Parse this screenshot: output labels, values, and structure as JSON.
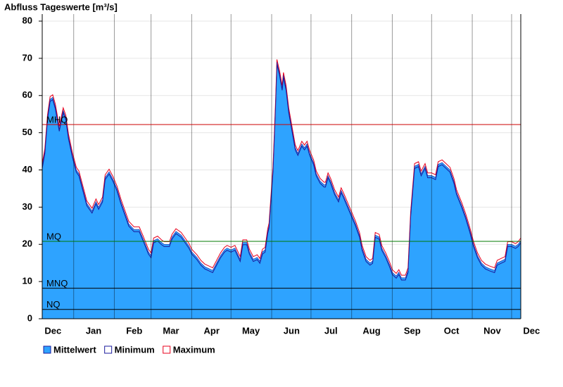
{
  "chart_data": {
    "type": "area",
    "title": "Abfluss Tageswerte [m³/s]",
    "xlim": [
      0,
      365
    ],
    "xticks": [
      {
        "value": -7,
        "label": "Dec"
      },
      {
        "value": 24,
        "label": "Jan"
      },
      {
        "value": 55,
        "label": "Feb"
      },
      {
        "value": 83,
        "label": "Mar"
      },
      {
        "value": 114,
        "label": "Apr"
      },
      {
        "value": 144,
        "label": "May"
      },
      {
        "value": 175,
        "label": "Jun"
      },
      {
        "value": 205,
        "label": "Jul"
      },
      {
        "value": 236,
        "label": "Aug"
      },
      {
        "value": 267,
        "label": "Sep"
      },
      {
        "value": 297,
        "label": "Oct"
      },
      {
        "value": 328,
        "label": "Nov"
      },
      {
        "value": 358,
        "label": "Dec"
      }
    ],
    "ylim": [
      0,
      80
    ],
    "yticks": [
      0,
      10,
      20,
      30,
      40,
      50,
      60,
      70,
      80
    ],
    "grid": true,
    "x": [
      0,
      2,
      4,
      6,
      8,
      10,
      12,
      13,
      16,
      18,
      20,
      23,
      26,
      28,
      31,
      34,
      38,
      41,
      43,
      46,
      48,
      51,
      54,
      57,
      60,
      63,
      66,
      70,
      74,
      77,
      81,
      83,
      85,
      88,
      91,
      93,
      97,
      99,
      102,
      106,
      109,
      112,
      114,
      118,
      121,
      124,
      127,
      130,
      133,
      136,
      139,
      141,
      144,
      147,
      149,
      151,
      153,
      156,
      158,
      161,
      164,
      166,
      168,
      170,
      172,
      173,
      176,
      178,
      179,
      181,
      183,
      184,
      186,
      188,
      191,
      193,
      195,
      198,
      200,
      202,
      204,
      207,
      209,
      212,
      215,
      216,
      218,
      220,
      223,
      226,
      228,
      230,
      233,
      236,
      239,
      242,
      244,
      247,
      250,
      252,
      254,
      257,
      259,
      262,
      265,
      267,
      270,
      272,
      274,
      277,
      279,
      281,
      284,
      287,
      289,
      292,
      294,
      297,
      300,
      302,
      305,
      308,
      311,
      314,
      316,
      320,
      323,
      326,
      329,
      332,
      335,
      338,
      341,
      345,
      347,
      350,
      353,
      355,
      358,
      361,
      363,
      365
    ],
    "series": [
      {
        "name": "Mittelwert",
        "style": "area",
        "color": "#2ea3ff",
        "values": [
          41,
          45,
          54,
          59,
          59.5,
          57,
          53,
          51,
          56,
          54,
          49,
          44,
          40,
          39,
          35,
          31,
          29,
          31.5,
          30,
          32,
          38,
          39.5,
          37.5,
          35,
          31.5,
          28.5,
          25.5,
          24,
          24,
          21.5,
          18,
          17,
          21,
          21.5,
          20.5,
          20,
          20,
          22,
          23.5,
          22.5,
          21,
          19.5,
          18,
          16.5,
          15,
          14,
          13.5,
          13,
          15,
          17,
          18.5,
          19,
          18.5,
          19,
          17.5,
          16,
          20.5,
          20.5,
          18,
          16,
          16.5,
          15.5,
          18,
          18.5,
          23.5,
          25,
          40,
          58,
          69,
          66,
          62,
          65.5,
          62,
          56,
          50,
          46,
          44.5,
          47,
          46,
          47,
          44.5,
          42,
          39,
          37,
          36,
          36,
          38.5,
          37,
          34,
          32,
          34.5,
          33,
          30.5,
          28,
          25.5,
          22.5,
          19,
          16,
          15,
          15.5,
          22.5,
          22,
          19,
          17,
          14.5,
          12.5,
          11.5,
          12.5,
          11,
          11,
          13,
          28,
          41,
          41.5,
          39,
          41,
          38.5,
          38.5,
          38,
          41.5,
          42,
          41,
          40,
          37,
          34,
          30.5,
          27.5,
          24,
          20,
          17,
          15,
          14,
          13.5,
          13,
          15,
          15.5,
          16,
          20,
          20,
          19.5,
          20,
          21
        ]
      },
      {
        "name": "Minimum",
        "style": "line",
        "color": "#1a1a9c",
        "values": [
          40.4,
          44.4,
          53.4,
          58.4,
          58.9,
          56.4,
          52.4,
          50.4,
          55.4,
          53.4,
          48.4,
          43.4,
          39.4,
          38.4,
          34.4,
          30.4,
          28.4,
          30.9,
          29.4,
          31.4,
          37.4,
          38.9,
          36.9,
          34.4,
          30.9,
          27.9,
          24.9,
          23.4,
          23.4,
          20.9,
          17.4,
          16.4,
          20.4,
          20.9,
          19.9,
          19.4,
          19.4,
          21.4,
          22.9,
          21.9,
          20.4,
          18.9,
          17.4,
          15.9,
          14.4,
          13.4,
          12.9,
          12.4,
          14.4,
          16.4,
          17.9,
          18.4,
          17.9,
          18.4,
          16.9,
          15.4,
          19.9,
          19.9,
          17.4,
          15.4,
          15.9,
          14.9,
          17.4,
          17.9,
          22.9,
          24.4,
          39.4,
          57.4,
          68.4,
          65.4,
          61.4,
          64.9,
          61.4,
          55.4,
          49.4,
          45.4,
          43.9,
          46.4,
          45.4,
          46.4,
          43.9,
          41.4,
          38.4,
          36.4,
          35.4,
          35.4,
          37.9,
          36.4,
          33.4,
          31.4,
          33.9,
          32.4,
          29.9,
          27.4,
          24.9,
          21.9,
          18.4,
          15.4,
          14.4,
          14.9,
          21.9,
          21.4,
          18.4,
          16.4,
          13.9,
          11.9,
          10.9,
          11.9,
          10.4,
          10.4,
          12.4,
          27.4,
          40.4,
          40.9,
          38.4,
          40.4,
          37.9,
          37.9,
          37.4,
          40.9,
          41.4,
          40.4,
          39.4,
          36.4,
          33.4,
          29.9,
          26.9,
          23.4,
          19.4,
          16.4,
          14.4,
          13.4,
          12.9,
          12.4,
          14.4,
          14.9,
          15.4,
          19.4,
          19.4,
          18.9,
          19.4,
          20.4
        ]
      },
      {
        "name": "Maximum",
        "style": "line",
        "color": "#e8001c",
        "values": [
          41.7,
          45.7,
          54.7,
          59.7,
          60.2,
          57.7,
          53.7,
          51.7,
          56.7,
          54.7,
          49.7,
          44.7,
          40.7,
          39.7,
          35.7,
          31.7,
          29.7,
          32.2,
          30.7,
          32.7,
          38.7,
          40.2,
          38.2,
          35.7,
          32.2,
          29.2,
          26.2,
          24.7,
          24.7,
          22.2,
          18.7,
          17.7,
          21.7,
          22.2,
          21.2,
          20.7,
          20.7,
          22.7,
          24.2,
          23.2,
          21.7,
          20.2,
          18.7,
          17.2,
          15.7,
          14.7,
          14.2,
          13.7,
          15.7,
          17.7,
          19.2,
          19.7,
          19.2,
          19.7,
          18.2,
          16.7,
          21.2,
          21.2,
          18.7,
          16.7,
          17.2,
          16.2,
          18.7,
          19.2,
          24.2,
          25.7,
          40.7,
          58.7,
          69.7,
          66.7,
          62.7,
          66.2,
          62.7,
          56.7,
          50.7,
          46.7,
          45.2,
          47.7,
          46.7,
          47.7,
          45.2,
          42.7,
          39.7,
          37.7,
          36.7,
          36.7,
          39.2,
          37.7,
          34.7,
          32.7,
          35.2,
          33.7,
          31.2,
          28.7,
          26.2,
          23.2,
          19.7,
          16.7,
          15.7,
          16.2,
          23.2,
          22.7,
          19.7,
          17.7,
          15.2,
          13.2,
          12.2,
          13.2,
          11.7,
          11.7,
          13.7,
          28.7,
          41.7,
          42.2,
          39.7,
          41.7,
          39.2,
          39.2,
          38.7,
          42.2,
          42.7,
          41.7,
          40.7,
          37.7,
          34.7,
          31.2,
          28.2,
          24.7,
          20.7,
          17.7,
          15.7,
          14.7,
          14.2,
          13.7,
          15.7,
          16.2,
          16.7,
          20.7,
          20.7,
          20.2,
          20.7,
          21.7
        ]
      }
    ],
    "reference_lines": [
      {
        "label": "MHQ",
        "value": 52.2,
        "color": "#cc0000"
      },
      {
        "label": "MQ",
        "value": 20.8,
        "color": "#007a00"
      },
      {
        "label": "MNQ",
        "value": 8.2,
        "color": "#000000"
      },
      {
        "label": "NQ",
        "value": 2.5,
        "color": "#000000"
      }
    ]
  }
}
